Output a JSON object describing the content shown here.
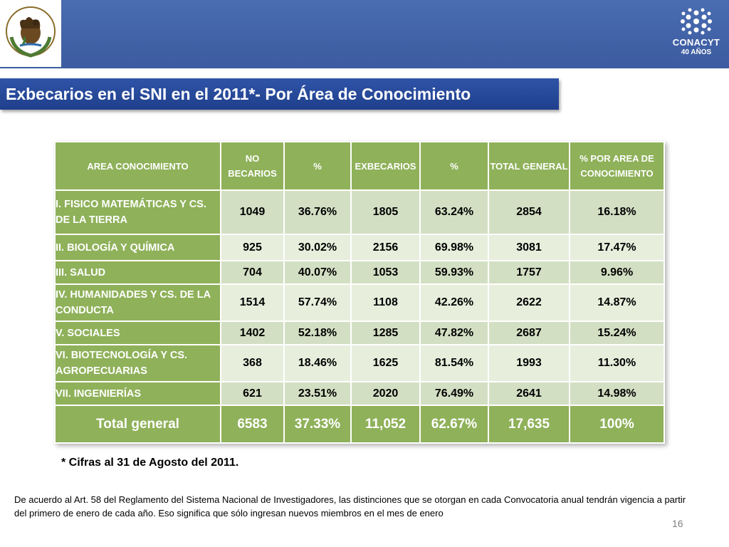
{
  "header": {
    "seal_text": "ESTADOS UNIDOS MEXICANOS",
    "logo_name": "CONACYT",
    "logo_years": "40 AÑOS"
  },
  "title": "Exbecarios en el SNI  en el 2011*- Por  Área de Conocimiento",
  "table": {
    "headers": [
      "AREA CONOCIMIENTO",
      "NO BECARIOS",
      "%",
      "EXBECARIOS",
      "%",
      "TOTAL GENERAL",
      "% POR AREA DE CONOCIMIENTO"
    ],
    "rows": [
      {
        "area": "I. FISICO MATEMÁTICAS Y CS. DE LA TIERRA",
        "no_becarios": "1049",
        "pct_no": "36.76%",
        "exbecarios": "1805",
        "pct_ex": "63.24%",
        "total": "2854",
        "pct_area": "16.18%"
      },
      {
        "area": "II. BIOLOGÍA Y QUÍMICA",
        "no_becarios": "925",
        "pct_no": "30.02%",
        "exbecarios": "2156",
        "pct_ex": "69.98%",
        "total": "3081",
        "pct_area": "17.47%"
      },
      {
        "area": "III. SALUD",
        "no_becarios": "704",
        "pct_no": "40.07%",
        "exbecarios": "1053",
        "pct_ex": "59.93%",
        "total": "1757",
        "pct_area": "9.96%"
      },
      {
        "area": "IV. HUMANIDADES Y CS. DE LA CONDUCTA",
        "no_becarios": "1514",
        "pct_no": "57.74%",
        "exbecarios": "1108",
        "pct_ex": "42.26%",
        "total": "2622",
        "pct_area": "14.87%"
      },
      {
        "area": "V. SOCIALES",
        "no_becarios": "1402",
        "pct_no": "52.18%",
        "exbecarios": "1285",
        "pct_ex": "47.82%",
        "total": "2687",
        "pct_area": "15.24%"
      },
      {
        "area": "VI. BIOTECNOLOGÍA Y CS. AGROPECUARIAS",
        "no_becarios": "368",
        "pct_no": "18.46%",
        "exbecarios": "1625",
        "pct_ex": "81.54%",
        "total": "1993",
        "pct_area": "11.30%"
      },
      {
        "area": "VII. INGENIERÍAS",
        "no_becarios": "621",
        "pct_no": "23.51%",
        "exbecarios": "2020",
        "pct_ex": "76.49%",
        "total": "2641",
        "pct_area": "14.98%"
      }
    ],
    "total": {
      "label": "Total general",
      "no_becarios": "6583",
      "pct_no": "37.33%",
      "exbecarios": "11,052",
      "pct_ex": "62.67%",
      "total": "17,635",
      "pct_area": "100%"
    }
  },
  "footnote": "* Cifras al 31 de Agosto del 2011.",
  "legal_note": "De acuerdo al Art. 58 del Reglamento del Sistema Nacional de Investigadores, las distinciones que se otorgan en cada Convocatoria anual tendrán vigencia a partir del primero de enero de cada año. Eso significa que sólo ingresan nuevos miembros en el mes de enero",
  "page_number": "16",
  "colors": {
    "header_blue": "#4a6cb0",
    "title_blue": "#2f54a8",
    "table_green": "#8fb15a",
    "row_light": "#e7eedc",
    "row_dark": "#d3dfc3"
  }
}
